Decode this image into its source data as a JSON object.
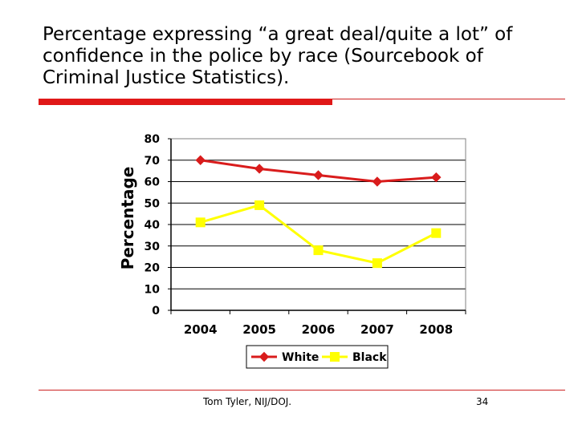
{
  "slide": {
    "title": "Percentage expressing “a great deal/quite a lot” of confidence in the police by race (Sourcebook of Criminal Justice Statistics).",
    "footer": "Tom Tyler, NIJ/DOJ.",
    "page_number": "34",
    "accent_color": "#e01818"
  },
  "chart_data": {
    "type": "line",
    "title": "",
    "xlabel": "",
    "ylabel": "Percentage",
    "categories": [
      "2004",
      "2005",
      "2006",
      "2007",
      "2008"
    ],
    "y_ticks": [
      0,
      10,
      20,
      30,
      40,
      50,
      60,
      70,
      80
    ],
    "ylim": [
      0,
      80
    ],
    "grid": "horizontal",
    "legend_position": "bottom",
    "series": [
      {
        "name": "White",
        "values": [
          70,
          66,
          63,
          60,
          62
        ],
        "color": "#d91c1c",
        "marker": "diamond"
      },
      {
        "name": "Black",
        "values": [
          41,
          49,
          28,
          22,
          36
        ],
        "color": "#ffff00",
        "marker": "square"
      }
    ]
  }
}
